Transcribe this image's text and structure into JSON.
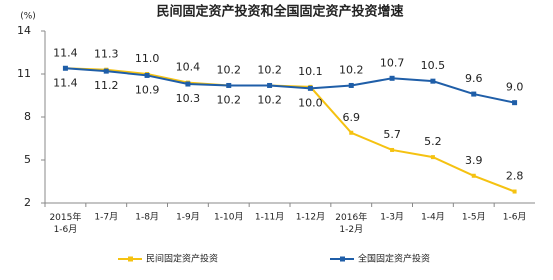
{
  "chart_data": {
    "type": "line",
    "title": "民间固定资产投资和全国固定资产投资增速",
    "y_unit": "(%)",
    "categories": [
      "2015年\n1-6月",
      "1-7月",
      "1-8月",
      "1-9月",
      "1-10月",
      "1-11月",
      "1-12月",
      "2016年\n1-2月",
      "1-3月",
      "1-4月",
      "1-5月",
      "1-6月"
    ],
    "series": [
      {
        "name": "民间固定资产投资",
        "color": "#f5c211",
        "values": [
          11.4,
          11.3,
          11.0,
          10.4,
          10.2,
          10.2,
          10.1,
          6.9,
          5.7,
          5.2,
          3.9,
          2.8
        ],
        "value_labels": [
          "11.4",
          "11.3",
          "11.0",
          "10.4",
          "10.2",
          "10.2",
          "10.1",
          "6.9",
          "5.7",
          "5.2",
          "3.9",
          "2.8"
        ]
      },
      {
        "name": "全国固定资产投资",
        "color": "#1f5ea8",
        "values": [
          11.4,
          11.2,
          10.9,
          10.3,
          10.2,
          10.2,
          10.0,
          10.2,
          10.7,
          10.5,
          9.6,
          9.0
        ],
        "value_labels": [
          "11.4",
          "11.2",
          "10.9",
          "10.3",
          "10.2",
          "10.2",
          "10.0",
          "10.2",
          "10.7",
          "10.5",
          "9.6",
          "9.0"
        ]
      }
    ],
    "ylim": [
      2,
      14
    ],
    "yticks": [
      2,
      5,
      8,
      11,
      14
    ],
    "grid": false,
    "legend": "bottom"
  }
}
